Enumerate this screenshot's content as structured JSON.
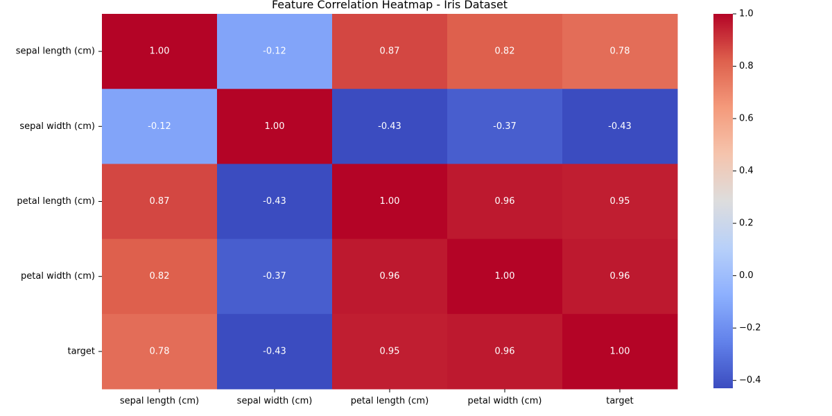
{
  "chart_data": {
    "type": "heatmap",
    "title": "Feature Correlation Heatmap - Iris Dataset",
    "xlabel": "",
    "ylabel": "",
    "rows": [
      "sepal length (cm)",
      "sepal width (cm)",
      "petal length (cm)",
      "petal width (cm)",
      "target"
    ],
    "columns": [
      "sepal length (cm)",
      "sepal width (cm)",
      "petal length (cm)",
      "petal width (cm)",
      "target"
    ],
    "values": [
      [
        1.0,
        -0.12,
        0.87,
        0.82,
        0.78
      ],
      [
        -0.12,
        1.0,
        -0.43,
        -0.37,
        -0.43
      ],
      [
        0.87,
        -0.43,
        1.0,
        0.96,
        0.95
      ],
      [
        0.82,
        -0.37,
        0.96,
        1.0,
        0.96
      ],
      [
        0.78,
        -0.43,
        0.95,
        0.96,
        1.0
      ]
    ],
    "cell_labels": [
      [
        "1.00",
        "-0.12",
        "0.87",
        "0.82",
        "0.78"
      ],
      [
        "-0.12",
        "1.00",
        "-0.43",
        "-0.37",
        "-0.43"
      ],
      [
        "0.87",
        "-0.43",
        "1.00",
        "0.96",
        "0.95"
      ],
      [
        "0.82",
        "-0.37",
        "0.96",
        "1.00",
        "0.96"
      ],
      [
        "0.78",
        "-0.43",
        "0.95",
        "0.96",
        "1.00"
      ]
    ],
    "colormap": "coolwarm",
    "vmin": -0.43,
    "vmax": 1.0,
    "colorbar": {
      "ticks": [
        -0.4,
        -0.2,
        0.0,
        0.2,
        0.4,
        0.6,
        0.8,
        1.0
      ],
      "tick_labels": [
        "−0.4",
        "−0.2",
        "0.0",
        "0.2",
        "0.4",
        "0.6",
        "0.8",
        "1.0"
      ],
      "placement": "right"
    },
    "grid": false
  }
}
